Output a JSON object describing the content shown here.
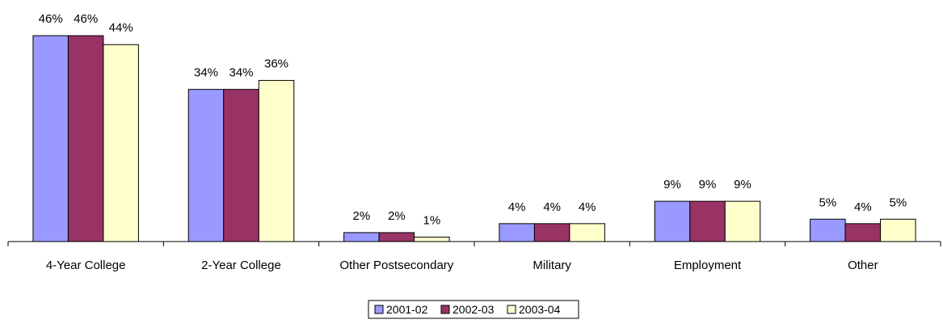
{
  "chart_data": {
    "type": "bar",
    "title": "",
    "xlabel": "",
    "ylabel": "",
    "ylim": [
      0,
      50
    ],
    "grid": false,
    "legend_position": "bottom-center",
    "categories": [
      "4-Year College",
      "2-Year College",
      "Other Postsecondary",
      "Military",
      "Employment",
      "Other"
    ],
    "series": [
      {
        "name": "2001-02",
        "color": "#9999FF",
        "values": [
          46,
          34,
          2,
          4,
          9,
          5
        ],
        "labels": [
          "46%",
          "34%",
          "2%",
          "4%",
          "9%",
          "5%"
        ]
      },
      {
        "name": "2002-03",
        "color": "#993366",
        "values": [
          46,
          34,
          2,
          4,
          9,
          4
        ],
        "labels": [
          "46%",
          "34%",
          "2%",
          "4%",
          "9%",
          "4%"
        ]
      },
      {
        "name": "2003-04",
        "color": "#FFFFCC",
        "values": [
          44,
          36,
          1,
          4,
          9,
          5
        ],
        "labels": [
          "44%",
          "36%",
          "1%",
          "4%",
          "9%",
          "5%"
        ]
      }
    ]
  }
}
